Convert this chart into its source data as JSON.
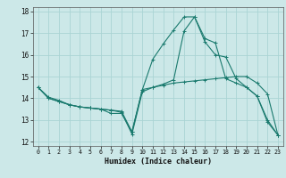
{
  "title": "",
  "xlabel": "Humidex (Indice chaleur)",
  "background_color": "#cce8e8",
  "grid_color": "#aad4d4",
  "line_color": "#1a7a6e",
  "xlim": [
    -0.5,
    23.5
  ],
  "ylim": [
    11.8,
    18.2
  ],
  "yticks": [
    12,
    13,
    14,
    15,
    16,
    17,
    18
  ],
  "xticks": [
    0,
    1,
    2,
    3,
    4,
    5,
    6,
    7,
    8,
    9,
    10,
    11,
    12,
    13,
    14,
    15,
    16,
    17,
    18,
    19,
    20,
    21,
    22,
    23
  ],
  "line1_x": [
    0,
    1,
    2,
    3,
    4,
    5,
    6,
    7,
    8,
    9,
    10,
    11,
    12,
    13,
    14,
    15,
    16,
    17,
    18,
    19,
    20,
    21,
    22,
    23
  ],
  "line1_y": [
    14.5,
    14.0,
    13.85,
    13.7,
    13.6,
    13.55,
    13.5,
    13.45,
    13.4,
    12.45,
    14.4,
    14.5,
    14.6,
    14.7,
    14.75,
    14.8,
    14.85,
    14.9,
    14.95,
    15.0,
    15.0,
    14.7,
    14.2,
    12.3
  ],
  "line2_x": [
    0,
    1,
    2,
    3,
    4,
    5,
    6,
    7,
    8,
    9,
    10,
    11,
    12,
    13,
    14,
    15,
    16,
    17,
    18,
    19,
    20,
    21,
    22,
    23
  ],
  "line2_y": [
    14.5,
    14.0,
    13.85,
    13.7,
    13.6,
    13.55,
    13.5,
    13.45,
    13.35,
    12.35,
    14.3,
    14.5,
    14.65,
    14.85,
    17.1,
    17.75,
    16.6,
    16.0,
    15.9,
    14.9,
    14.5,
    14.1,
    12.9,
    12.3
  ],
  "line3_x": [
    0,
    1,
    2,
    3,
    4,
    5,
    6,
    7,
    8,
    9,
    10,
    11,
    12,
    13,
    14,
    15,
    16,
    17,
    18,
    19,
    20,
    21,
    22,
    23
  ],
  "line3_y": [
    14.5,
    14.05,
    13.9,
    13.7,
    13.6,
    13.55,
    13.5,
    13.3,
    13.3,
    12.45,
    14.4,
    15.8,
    16.5,
    17.15,
    17.75,
    17.75,
    16.75,
    16.55,
    14.9,
    14.7,
    14.5,
    14.1,
    13.0,
    12.3
  ]
}
